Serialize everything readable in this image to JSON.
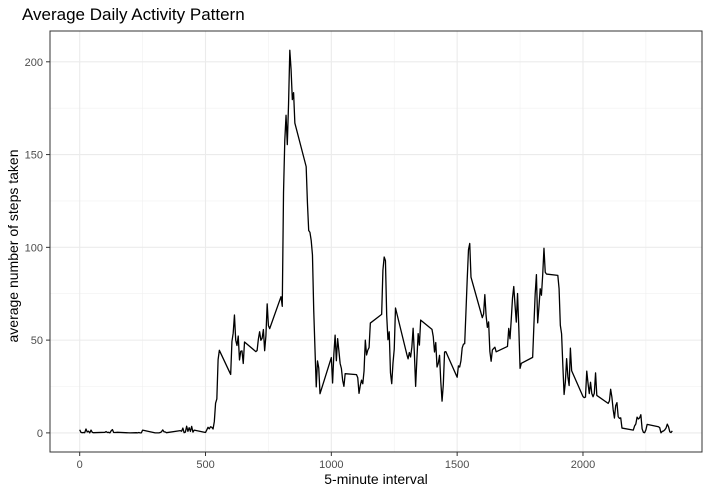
{
  "chart_data": {
    "type": "line",
    "title": "Average Daily Activity Pattern",
    "xlabel": "5-minute interval",
    "ylabel": "average number of steps taken",
    "xlim": [
      -118,
      2473
    ],
    "ylim": [
      -10.3,
      216.6
    ],
    "xticks": [
      0,
      500,
      1000,
      1500,
      2000
    ],
    "yticks": [
      0,
      50,
      100,
      150,
      200
    ],
    "grid": true,
    "legend": "none",
    "line_color": "#000000",
    "series": [
      {
        "values": [
          [
            0,
            1.7
          ],
          [
            5,
            0.3
          ],
          [
            10,
            0.1
          ],
          [
            15,
            0.2
          ],
          [
            20,
            0.1
          ],
          [
            25,
            2.1
          ],
          [
            30,
            0.5
          ],
          [
            35,
            0.9
          ],
          [
            40,
            0.0
          ],
          [
            45,
            1.5
          ],
          [
            50,
            0.3
          ],
          [
            55,
            0.1
          ],
          [
            100,
            0.3
          ],
          [
            105,
            0.7
          ],
          [
            110,
            0.2
          ],
          [
            115,
            0.3
          ],
          [
            120,
            0.0
          ],
          [
            125,
            1.1
          ],
          [
            130,
            1.8
          ],
          [
            135,
            0.2
          ],
          [
            140,
            0.2
          ],
          [
            150,
            0.3
          ],
          [
            200,
            0.0
          ],
          [
            225,
            0.1
          ],
          [
            230,
            0.0
          ],
          [
            235,
            0.2
          ],
          [
            240,
            0.0
          ],
          [
            245,
            0.0
          ],
          [
            250,
            1.5
          ],
          [
            300,
            0.0
          ],
          [
            315,
            0.0
          ],
          [
            320,
            0.2
          ],
          [
            325,
            0.6
          ],
          [
            330,
            1.6
          ],
          [
            335,
            0.6
          ],
          [
            340,
            0.5
          ],
          [
            345,
            0.1
          ],
          [
            400,
            1.2
          ],
          [
            405,
            0.9
          ],
          [
            410,
            2.6
          ],
          [
            415,
            0.1
          ],
          [
            420,
            0.4
          ],
          [
            425,
            3.6
          ],
          [
            430,
            0.8
          ],
          [
            435,
            2.8
          ],
          [
            440,
            0.8
          ],
          [
            445,
            3.5
          ],
          [
            450,
            0.4
          ],
          [
            455,
            1.5
          ],
          [
            500,
            0.2
          ],
          [
            505,
            1.6
          ],
          [
            510,
            3.0
          ],
          [
            515,
            2.2
          ],
          [
            520,
            3.3
          ],
          [
            525,
            3.0
          ],
          [
            530,
            2.1
          ],
          [
            535,
            6.1
          ],
          [
            540,
            16.0
          ],
          [
            545,
            18.3
          ],
          [
            550,
            39.5
          ],
          [
            555,
            44.5
          ],
          [
            600,
            31.5
          ],
          [
            605,
            49.3
          ],
          [
            610,
            53.8
          ],
          [
            615,
            63.5
          ],
          [
            620,
            50.0
          ],
          [
            625,
            47.1
          ],
          [
            630,
            52.2
          ],
          [
            635,
            39.3
          ],
          [
            640,
            44.0
          ],
          [
            645,
            44.2
          ],
          [
            650,
            37.4
          ],
          [
            655,
            49.0
          ],
          [
            700,
            43.8
          ],
          [
            705,
            44.4
          ],
          [
            710,
            50.5
          ],
          [
            715,
            54.5
          ],
          [
            720,
            49.9
          ],
          [
            725,
            51.0
          ],
          [
            730,
            55.7
          ],
          [
            735,
            44.3
          ],
          [
            740,
            52.3
          ],
          [
            745,
            69.5
          ],
          [
            750,
            57.8
          ],
          [
            755,
            56.2
          ],
          [
            800,
            73.4
          ],
          [
            805,
            68.2
          ],
          [
            810,
            129.4
          ],
          [
            815,
            157.5
          ],
          [
            820,
            171.2
          ],
          [
            825,
            155.4
          ],
          [
            830,
            177.3
          ],
          [
            835,
            206.2
          ],
          [
            840,
            195.9
          ],
          [
            845,
            179.6
          ],
          [
            850,
            183.4
          ],
          [
            855,
            167.0
          ],
          [
            900,
            143.5
          ],
          [
            905,
            124.0
          ],
          [
            910,
            109.1
          ],
          [
            915,
            108.1
          ],
          [
            920,
            103.7
          ],
          [
            925,
            95.9
          ],
          [
            930,
            66.2
          ],
          [
            935,
            45.2
          ],
          [
            940,
            24.8
          ],
          [
            945,
            38.8
          ],
          [
            950,
            35.0
          ],
          [
            955,
            21.1
          ],
          [
            1000,
            40.6
          ],
          [
            1005,
            26.9
          ],
          [
            1010,
            42.4
          ],
          [
            1015,
            52.7
          ],
          [
            1020,
            38.9
          ],
          [
            1025,
            50.8
          ],
          [
            1030,
            44.3
          ],
          [
            1035,
            37.4
          ],
          [
            1040,
            34.7
          ],
          [
            1045,
            28.3
          ],
          [
            1050,
            25.1
          ],
          [
            1055,
            31.9
          ],
          [
            1100,
            31.4
          ],
          [
            1105,
            29.7
          ],
          [
            1110,
            21.3
          ],
          [
            1115,
            25.5
          ],
          [
            1120,
            28.4
          ],
          [
            1125,
            26.5
          ],
          [
            1130,
            33.4
          ],
          [
            1135,
            50.0
          ],
          [
            1140,
            42.0
          ],
          [
            1145,
            44.6
          ],
          [
            1150,
            46.0
          ],
          [
            1155,
            59.2
          ],
          [
            1200,
            63.9
          ],
          [
            1205,
            87.7
          ],
          [
            1210,
            94.8
          ],
          [
            1215,
            92.8
          ],
          [
            1220,
            63.4
          ],
          [
            1225,
            50.2
          ],
          [
            1230,
            54.5
          ],
          [
            1235,
            32.4
          ],
          [
            1240,
            26.5
          ],
          [
            1245,
            37.7
          ],
          [
            1250,
            45.1
          ],
          [
            1255,
            67.3
          ],
          [
            1300,
            42.3
          ],
          [
            1305,
            39.9
          ],
          [
            1310,
            43.3
          ],
          [
            1315,
            40.9
          ],
          [
            1320,
            46.2
          ],
          [
            1325,
            56.4
          ],
          [
            1330,
            42.8
          ],
          [
            1335,
            25.1
          ],
          [
            1340,
            40.0
          ],
          [
            1345,
            53.5
          ],
          [
            1350,
            47.3
          ],
          [
            1355,
            60.8
          ],
          [
            1400,
            55.8
          ],
          [
            1405,
            51.9
          ],
          [
            1410,
            43.6
          ],
          [
            1415,
            48.7
          ],
          [
            1420,
            35.5
          ],
          [
            1425,
            37.5
          ],
          [
            1430,
            41.8
          ],
          [
            1435,
            27.5
          ],
          [
            1440,
            17.1
          ],
          [
            1445,
            26.1
          ],
          [
            1450,
            43.6
          ],
          [
            1455,
            43.8
          ],
          [
            1500,
            30.0
          ],
          [
            1505,
            36.1
          ],
          [
            1510,
            35.5
          ],
          [
            1515,
            38.8
          ],
          [
            1520,
            45.8
          ],
          [
            1525,
            47.8
          ],
          [
            1530,
            48.1
          ],
          [
            1535,
            65.3
          ],
          [
            1540,
            82.9
          ],
          [
            1545,
            98.7
          ],
          [
            1550,
            102.1
          ],
          [
            1555,
            83.9
          ],
          [
            1600,
            62.1
          ],
          [
            1605,
            64.1
          ],
          [
            1610,
            74.5
          ],
          [
            1615,
            63.2
          ],
          [
            1620,
            56.9
          ],
          [
            1625,
            59.8
          ],
          [
            1630,
            43.9
          ],
          [
            1635,
            38.6
          ],
          [
            1640,
            44.7
          ],
          [
            1645,
            45.5
          ],
          [
            1650,
            46.2
          ],
          [
            1655,
            43.7
          ],
          [
            1700,
            46.6
          ],
          [
            1705,
            56.3
          ],
          [
            1710,
            50.7
          ],
          [
            1715,
            61.2
          ],
          [
            1720,
            72.7
          ],
          [
            1725,
            78.9
          ],
          [
            1730,
            68.9
          ],
          [
            1735,
            59.7
          ],
          [
            1740,
            75.1
          ],
          [
            1745,
            56.5
          ],
          [
            1750,
            34.8
          ],
          [
            1755,
            37.5
          ],
          [
            1800,
            40.7
          ],
          [
            1805,
            58.0
          ],
          [
            1810,
            74.7
          ],
          [
            1815,
            85.3
          ],
          [
            1820,
            59.3
          ],
          [
            1825,
            67.8
          ],
          [
            1830,
            77.7
          ],
          [
            1835,
            74.2
          ],
          [
            1840,
            85.3
          ],
          [
            1845,
            99.5
          ],
          [
            1850,
            86.6
          ],
          [
            1855,
            85.6
          ],
          [
            1900,
            84.9
          ],
          [
            1905,
            77.8
          ],
          [
            1910,
            58.0
          ],
          [
            1915,
            53.4
          ],
          [
            1920,
            36.3
          ],
          [
            1925,
            20.7
          ],
          [
            1930,
            27.4
          ],
          [
            1935,
            40.0
          ],
          [
            1940,
            30.2
          ],
          [
            1945,
            25.5
          ],
          [
            1950,
            45.7
          ],
          [
            1955,
            33.5
          ],
          [
            2000,
            19.6
          ],
          [
            2005,
            19.0
          ],
          [
            2010,
            19.3
          ],
          [
            2015,
            33.3
          ],
          [
            2020,
            26.8
          ],
          [
            2025,
            21.2
          ],
          [
            2030,
            27.3
          ],
          [
            2035,
            21.3
          ],
          [
            2040,
            19.5
          ],
          [
            2045,
            21.3
          ],
          [
            2050,
            32.3
          ],
          [
            2055,
            20.2
          ],
          [
            2100,
            15.9
          ],
          [
            2105,
            17.2
          ],
          [
            2110,
            23.5
          ],
          [
            2115,
            19.2
          ],
          [
            2120,
            12.5
          ],
          [
            2125,
            8.0
          ],
          [
            2130,
            14.7
          ],
          [
            2135,
            16.3
          ],
          [
            2140,
            8.7
          ],
          [
            2145,
            7.8
          ],
          [
            2150,
            8.1
          ],
          [
            2155,
            2.6
          ],
          [
            2200,
            1.5
          ],
          [
            2205,
            3.7
          ],
          [
            2210,
            4.8
          ],
          [
            2215,
            8.5
          ],
          [
            2220,
            7.5
          ],
          [
            2225,
            8.1
          ],
          [
            2230,
            9.8
          ],
          [
            2235,
            2.2
          ],
          [
            2240,
            0.3
          ],
          [
            2245,
            0.1
          ],
          [
            2250,
            1.6
          ],
          [
            2255,
            4.6
          ],
          [
            2300,
            3.3
          ],
          [
            2305,
            2.8
          ],
          [
            2310,
            0.0
          ],
          [
            2315,
            0.8
          ],
          [
            2320,
            1.0
          ],
          [
            2325,
            1.6
          ],
          [
            2330,
            2.6
          ],
          [
            2335,
            4.7
          ],
          [
            2340,
            3.3
          ],
          [
            2345,
            0.6
          ],
          [
            2350,
            0.2
          ],
          [
            2355,
            1.1
          ]
        ]
      }
    ]
  }
}
